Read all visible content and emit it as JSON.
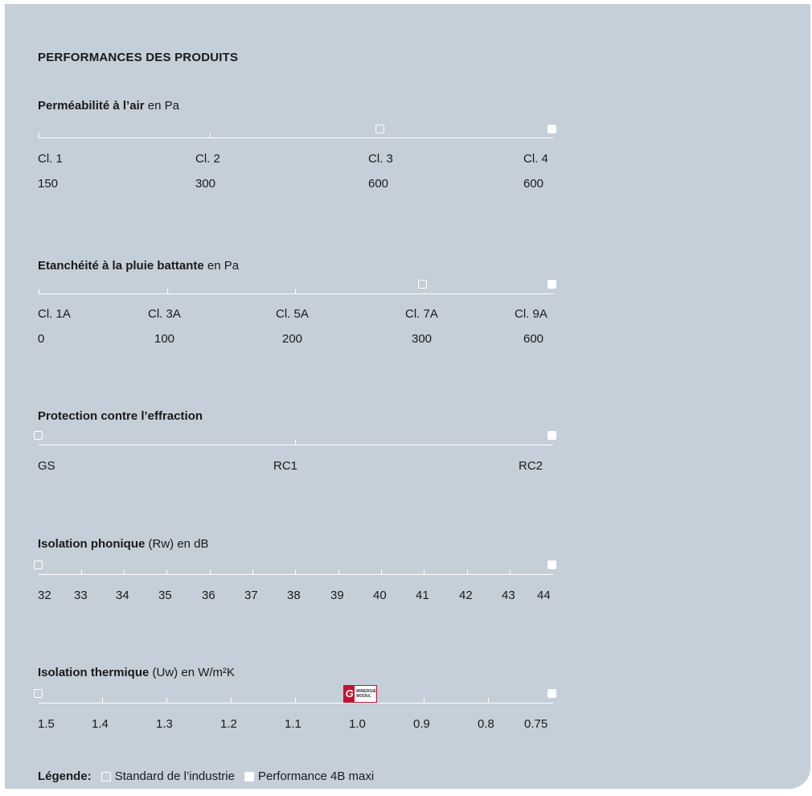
{
  "title": "PERFORMANCES DES PRODUITS",
  "sections": [
    {
      "title_bold": "Perméabilité à l’air",
      "title_rest": " en Pa",
      "labels": [
        "Cl. 1",
        "Cl. 2",
        "Cl. 3",
        "Cl. 4"
      ],
      "values": [
        "150",
        "300",
        "600",
        "600"
      ],
      "standard_at": "Cl. 3",
      "performance_at": "Cl. 4"
    },
    {
      "title_bold": "Etanchéité à la pluie battante",
      "title_rest": " en Pa",
      "labels": [
        "Cl. 1A",
        "Cl. 3A",
        "Cl. 5A",
        "Cl. 7A",
        "Cl. 9A"
      ],
      "values": [
        "0",
        "100",
        "200",
        "300",
        "600"
      ],
      "standard_at": "Cl. 7A",
      "performance_at": "Cl. 9A"
    },
    {
      "title_bold": "Protection contre l’effraction",
      "title_rest": "",
      "labels": [
        "GS",
        "RC1",
        "RC2"
      ],
      "standard_at": "GS",
      "performance_at": "RC2"
    },
    {
      "title_bold": "Isolation phonique",
      "title_rest": " (Rw) en dB",
      "labels": [
        "32",
        "33",
        "34",
        "35",
        "36",
        "37",
        "38",
        "39",
        "40",
        "41",
        "42",
        "43",
        "44"
      ],
      "standard_at": "32",
      "performance_at": "44"
    },
    {
      "title_bold": "Isolation thermique",
      "title_rest": "  (Uw) en W/m²K",
      "labels": [
        "1.5",
        "1.4",
        "1.3",
        "1.2",
        "1.1",
        "1.0",
        "0.9",
        "0.8",
        "0.75"
      ],
      "standard_at": "1.5",
      "performance_at": "0.75",
      "badge_text": "MINERGIE MODUL"
    }
  ],
  "legend": {
    "label": "Légende:",
    "standard": "Standard de l’industrie",
    "performance": "Performance 4B maxi"
  },
  "colors": {
    "panel_background": "#c5cfd9",
    "axis_and_markers": "#ffffff",
    "badge_red": "#c8102e"
  }
}
